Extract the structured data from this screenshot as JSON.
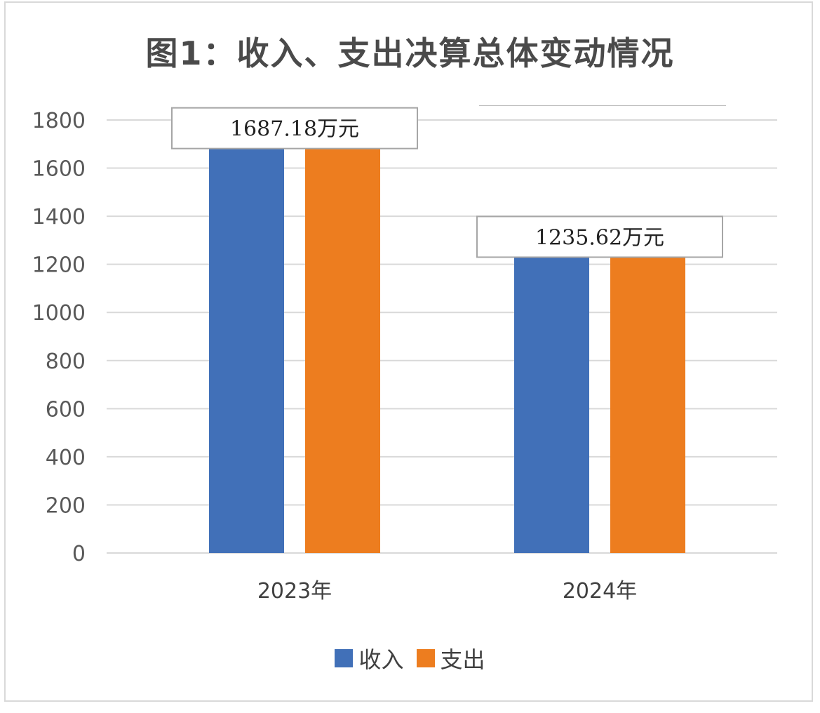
{
  "chart_data": {
    "type": "bar",
    "title": "图1：收入、支出决算总体变动情况",
    "categories": [
      "2023年",
      "2024年"
    ],
    "series": [
      {
        "name": "收入",
        "values": [
          1687.18,
          1235.62
        ],
        "color": "#4170b8"
      },
      {
        "name": "支出",
        "values": [
          1687.18,
          1235.62
        ],
        "color": "#ed7d1f"
      }
    ],
    "data_labels": [
      "1687.18万元",
      "1235.62万元"
    ],
    "ylim": [
      0,
      1800
    ],
    "yticks": [
      0,
      200,
      400,
      600,
      800,
      1000,
      1200,
      1400,
      1600,
      1800
    ],
    "grid": true,
    "legend_position": "bottom"
  }
}
